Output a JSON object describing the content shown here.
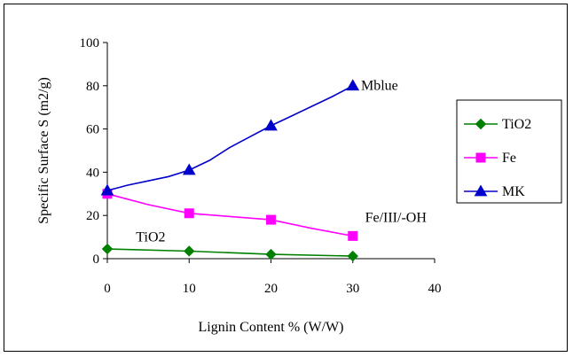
{
  "chart_data": {
    "type": "line",
    "title": "",
    "xlabel": "Lignin Content % (W/W)",
    "ylabel": "Specific Surface  S (m2/g)",
    "xlim": [
      0,
      40
    ],
    "ylim": [
      0,
      100
    ],
    "x_ticks": [
      "0",
      "10",
      "20",
      "30",
      "40"
    ],
    "y_ticks": [
      "0",
      "20",
      "40",
      "60",
      "80",
      "100"
    ],
    "grid": false,
    "legend_position": "right",
    "series": [
      {
        "name": "TiO2",
        "color": "#008000",
        "marker": "diamond",
        "points": [
          [
            0,
            4.5
          ],
          [
            10,
            3.5
          ],
          [
            20,
            2
          ],
          [
            30,
            1.2
          ]
        ],
        "curve": [
          [
            0,
            4.5
          ],
          [
            10,
            3.5
          ],
          [
            20,
            2
          ],
          [
            30,
            1.2
          ]
        ]
      },
      {
        "name": "Fe",
        "color": "#FF00FF",
        "marker": "square",
        "points": [
          [
            0,
            30
          ],
          [
            10,
            21
          ],
          [
            20,
            18
          ],
          [
            30,
            10.5
          ]
        ],
        "curve": [
          [
            0,
            30
          ],
          [
            5,
            25
          ],
          [
            10,
            21
          ],
          [
            15,
            19.5
          ],
          [
            20,
            18
          ],
          [
            25,
            14
          ],
          [
            30,
            10.5
          ]
        ]
      },
      {
        "name": "MK",
        "color": "#0000CC",
        "marker": "triangle",
        "points": [
          [
            0,
            31.5
          ],
          [
            10,
            41
          ],
          [
            20,
            61.5
          ],
          [
            30,
            80
          ]
        ],
        "curve": [
          [
            0,
            31.5
          ],
          [
            2.5,
            34
          ],
          [
            5,
            36
          ],
          [
            7.5,
            38
          ],
          [
            10,
            41
          ],
          [
            12.5,
            45.5
          ],
          [
            15,
            51.5
          ],
          [
            17.5,
            56.5
          ],
          [
            20,
            61.5
          ],
          [
            22.5,
            66
          ],
          [
            25,
            70.5
          ],
          [
            27.5,
            75
          ],
          [
            30,
            80
          ]
        ]
      }
    ],
    "annotations": [
      {
        "text": "Mblue",
        "x": 31,
        "y": 78
      },
      {
        "text": "Fe/III/-OH",
        "x": 31.5,
        "y": 17
      },
      {
        "text": "TiO2",
        "x": 3.5,
        "y": 8
      }
    ]
  }
}
